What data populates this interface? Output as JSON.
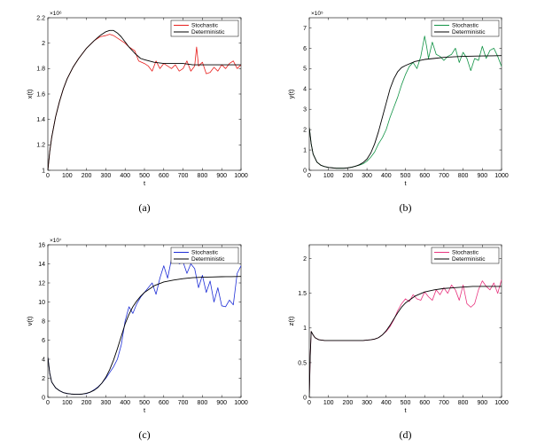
{
  "chart_data": [
    {
      "type": "line",
      "id": "a",
      "caption": "(a)",
      "xlabel": "t",
      "ylabel": "x(t)",
      "exponent_label": "×10⁶",
      "xlim": [
        0,
        1000
      ],
      "ylim": [
        1.0,
        2.2
      ],
      "xticks": [
        "0",
        "100",
        "200",
        "300",
        "400",
        "500",
        "600",
        "700",
        "800",
        "900",
        "1000"
      ],
      "yticks": [
        "1",
        "1.2",
        "1.4",
        "1.6",
        "1.8",
        "2",
        "2.2"
      ],
      "ytick_values": [
        1.0,
        1.2,
        1.4,
        1.6,
        1.8,
        2.0,
        2.2
      ],
      "legend": {
        "position": "top-right",
        "entries": [
          "Stochastic",
          "Deterministic"
        ]
      },
      "series": [
        {
          "name": "Stochastic",
          "color": "#e8201e",
          "x": [
            0,
            10,
            20,
            40,
            60,
            80,
            100,
            130,
            160,
            200,
            240,
            270,
            300,
            320,
            340,
            360,
            380,
            400,
            420,
            450,
            470,
            500,
            520,
            540,
            560,
            580,
            600,
            620,
            640,
            660,
            680,
            700,
            720,
            740,
            760,
            770,
            780,
            800,
            820,
            840,
            860,
            880,
            900,
            920,
            940,
            960,
            980,
            1000
          ],
          "y": [
            1.0,
            1.15,
            1.26,
            1.42,
            1.54,
            1.64,
            1.72,
            1.81,
            1.88,
            1.96,
            2.02,
            2.05,
            2.06,
            2.07,
            2.06,
            2.04,
            2.02,
            2.0,
            1.97,
            1.94,
            1.86,
            1.84,
            1.82,
            1.78,
            1.86,
            1.8,
            1.84,
            1.82,
            1.8,
            1.83,
            1.78,
            1.8,
            1.86,
            1.78,
            1.82,
            1.97,
            1.82,
            1.85,
            1.76,
            1.77,
            1.81,
            1.78,
            1.83,
            1.8,
            1.84,
            1.86,
            1.8,
            1.83
          ]
        },
        {
          "name": "Deterministic",
          "color": "#000000",
          "x": [
            0,
            10,
            20,
            40,
            60,
            80,
            100,
            130,
            160,
            200,
            240,
            270,
            300,
            320,
            340,
            360,
            380,
            400,
            420,
            450,
            480,
            500,
            550,
            600,
            650,
            700,
            750,
            800,
            850,
            900,
            950,
            1000
          ],
          "y": [
            1.0,
            1.15,
            1.26,
            1.42,
            1.54,
            1.64,
            1.72,
            1.81,
            1.88,
            1.96,
            2.02,
            2.06,
            2.09,
            2.1,
            2.1,
            2.08,
            2.05,
            2.01,
            1.97,
            1.92,
            1.88,
            1.87,
            1.85,
            1.84,
            1.84,
            1.84,
            1.83,
            1.83,
            1.83,
            1.83,
            1.83,
            1.83
          ]
        }
      ]
    },
    {
      "type": "line",
      "id": "b",
      "caption": "(b)",
      "xlabel": "t",
      "ylabel": "y(t)",
      "exponent_label": "×10⁵",
      "xlim": [
        0,
        1000
      ],
      "ylim": [
        0,
        7.5
      ],
      "xticks": [
        "0",
        "100",
        "200",
        "300",
        "400",
        "500",
        "600",
        "700",
        "800",
        "900",
        "1000"
      ],
      "yticks": [
        "0",
        "1",
        "2",
        "3",
        "4",
        "5",
        "6",
        "7"
      ],
      "ytick_values": [
        0,
        1,
        2,
        3,
        4,
        5,
        6,
        7
      ],
      "legend": {
        "position": "top-right",
        "entries": [
          "Stochastic",
          "Deterministic"
        ]
      },
      "series": [
        {
          "name": "Stochastic",
          "color": "#119345",
          "x": [
            0,
            10,
            20,
            40,
            60,
            80,
            100,
            120,
            140,
            160,
            180,
            200,
            220,
            240,
            260,
            280,
            300,
            320,
            340,
            360,
            380,
            400,
            420,
            440,
            460,
            480,
            500,
            520,
            540,
            560,
            580,
            600,
            610,
            620,
            640,
            660,
            680,
            700,
            720,
            740,
            760,
            780,
            800,
            820,
            840,
            860,
            880,
            900,
            920,
            940,
            960,
            980,
            1000
          ],
          "y": [
            2.1,
            1.3,
            0.8,
            0.4,
            0.25,
            0.18,
            0.14,
            0.12,
            0.1,
            0.1,
            0.1,
            0.12,
            0.15,
            0.2,
            0.25,
            0.32,
            0.45,
            0.65,
            0.9,
            1.3,
            1.6,
            2.0,
            2.6,
            3.1,
            3.6,
            4.2,
            4.7,
            5.1,
            5.3,
            5.0,
            5.6,
            6.6,
            6.1,
            5.5,
            6.3,
            5.7,
            5.6,
            5.4,
            5.6,
            5.7,
            6.0,
            5.3,
            5.8,
            5.5,
            4.9,
            5.5,
            5.4,
            6.1,
            5.5,
            5.9,
            6.0,
            5.6,
            5.1
          ]
        },
        {
          "name": "Deterministic",
          "color": "#000000",
          "x": [
            0,
            10,
            20,
            40,
            60,
            80,
            100,
            120,
            140,
            160,
            180,
            200,
            220,
            240,
            260,
            280,
            300,
            320,
            340,
            360,
            380,
            400,
            420,
            440,
            460,
            480,
            500,
            550,
            600,
            650,
            700,
            750,
            800,
            850,
            900,
            950,
            1000
          ],
          "y": [
            2.1,
            1.3,
            0.8,
            0.4,
            0.25,
            0.18,
            0.14,
            0.12,
            0.1,
            0.1,
            0.1,
            0.12,
            0.15,
            0.2,
            0.27,
            0.38,
            0.55,
            0.85,
            1.3,
            1.9,
            2.6,
            3.3,
            4.0,
            4.5,
            4.85,
            5.05,
            5.15,
            5.35,
            5.45,
            5.5,
            5.55,
            5.58,
            5.6,
            5.61,
            5.62,
            5.63,
            5.64
          ]
        }
      ]
    },
    {
      "type": "line",
      "id": "c",
      "caption": "(c)",
      "xlabel": "t",
      "ylabel": "v(t)",
      "exponent_label": "×10⁷",
      "xlim": [
        0,
        1000
      ],
      "ylim": [
        0,
        16
      ],
      "xticks": [
        "0",
        "100",
        "200",
        "300",
        "400",
        "500",
        "600",
        "700",
        "800",
        "900",
        "1000"
      ],
      "yticks": [
        "0",
        "2",
        "4",
        "6",
        "8",
        "10",
        "12",
        "14",
        "16"
      ],
      "ytick_values": [
        0,
        2,
        4,
        6,
        8,
        10,
        12,
        14,
        16
      ],
      "legend": {
        "position": "top-right",
        "entries": [
          "Stochastic",
          "Deterministic"
        ]
      },
      "series": [
        {
          "name": "Stochastic",
          "color": "#1f2fd6",
          "x": [
            0,
            10,
            20,
            40,
            60,
            80,
            100,
            120,
            140,
            160,
            180,
            200,
            220,
            240,
            260,
            280,
            300,
            320,
            340,
            360,
            380,
            400,
            420,
            440,
            460,
            480,
            500,
            520,
            540,
            560,
            580,
            600,
            620,
            640,
            660,
            680,
            700,
            720,
            740,
            760,
            780,
            800,
            820,
            840,
            860,
            880,
            900,
            920,
            940,
            960,
            980,
            1000
          ],
          "y": [
            4.2,
            2.5,
            1.6,
            1.0,
            0.7,
            0.5,
            0.4,
            0.35,
            0.32,
            0.32,
            0.35,
            0.4,
            0.55,
            0.8,
            1.1,
            1.5,
            2.0,
            2.6,
            3.2,
            4.0,
            5.5,
            8.0,
            9.5,
            8.8,
            9.8,
            10.5,
            11.0,
            11.5,
            12.0,
            10.8,
            12.5,
            13.8,
            12.5,
            14.5,
            15.4,
            14.0,
            14.2,
            13.0,
            14.0,
            13.5,
            11.5,
            12.8,
            11.0,
            12.2,
            10.0,
            11.5,
            9.6,
            9.5,
            10.2,
            9.7,
            13.0,
            13.8
          ]
        },
        {
          "name": "Deterministic",
          "color": "#000000",
          "x": [
            0,
            10,
            20,
            40,
            60,
            80,
            100,
            120,
            140,
            160,
            180,
            200,
            220,
            240,
            260,
            280,
            300,
            320,
            340,
            360,
            380,
            400,
            420,
            440,
            460,
            480,
            500,
            550,
            600,
            650,
            700,
            750,
            800,
            850,
            900,
            950,
            1000
          ],
          "y": [
            4.2,
            2.5,
            1.6,
            1.0,
            0.7,
            0.5,
            0.4,
            0.35,
            0.32,
            0.32,
            0.35,
            0.42,
            0.55,
            0.75,
            1.05,
            1.5,
            2.1,
            2.9,
            3.9,
            5.1,
            6.4,
            7.7,
            8.7,
            9.5,
            10.1,
            10.6,
            11.0,
            11.7,
            12.1,
            12.3,
            12.45,
            12.55,
            12.6,
            12.62,
            12.65,
            12.66,
            12.68
          ]
        }
      ]
    },
    {
      "type": "line",
      "id": "d",
      "caption": "(d)",
      "xlabel": "t",
      "ylabel": "z(t)",
      "exponent_label": "",
      "xlim": [
        0,
        1000
      ],
      "ylim": [
        0,
        2.2
      ],
      "xticks": [
        "0",
        "100",
        "200",
        "300",
        "400",
        "500",
        "600",
        "700",
        "800",
        "900",
        "1000"
      ],
      "yticks": [
        "0",
        "0.5",
        "1",
        "1.5",
        "2"
      ],
      "ytick_values": [
        0,
        0.5,
        1.0,
        1.5,
        2.0
      ],
      "legend": {
        "position": "top-right",
        "entries": [
          "Stochastic",
          "Deterministic"
        ]
      },
      "series": [
        {
          "name": "Stochastic",
          "color": "#e8347e",
          "x": [
            0,
            5,
            10,
            20,
            30,
            50,
            80,
            120,
            160,
            200,
            240,
            280,
            320,
            340,
            360,
            380,
            400,
            420,
            440,
            460,
            480,
            500,
            520,
            540,
            560,
            580,
            600,
            620,
            640,
            660,
            680,
            700,
            720,
            740,
            760,
            780,
            800,
            820,
            840,
            860,
            880,
            900,
            920,
            940,
            960,
            980,
            1000
          ],
          "y": [
            0.0,
            0.6,
            0.95,
            0.9,
            0.86,
            0.83,
            0.82,
            0.82,
            0.82,
            0.82,
            0.82,
            0.82,
            0.83,
            0.84,
            0.86,
            0.9,
            0.95,
            1.02,
            1.12,
            1.25,
            1.35,
            1.42,
            1.38,
            1.48,
            1.42,
            1.4,
            1.52,
            1.45,
            1.4,
            1.55,
            1.48,
            1.58,
            1.5,
            1.62,
            1.55,
            1.4,
            1.62,
            1.35,
            1.3,
            1.35,
            1.55,
            1.68,
            1.6,
            1.55,
            1.65,
            1.5,
            1.7
          ]
        },
        {
          "name": "Deterministic",
          "color": "#000000",
          "x": [
            0,
            5,
            10,
            20,
            30,
            50,
            80,
            120,
            160,
            200,
            240,
            280,
            320,
            340,
            360,
            380,
            400,
            420,
            440,
            460,
            480,
            500,
            550,
            600,
            650,
            700,
            750,
            800,
            850,
            900,
            950,
            1000
          ],
          "y": [
            0.0,
            0.6,
            0.95,
            0.9,
            0.86,
            0.83,
            0.82,
            0.82,
            0.82,
            0.82,
            0.82,
            0.82,
            0.83,
            0.84,
            0.86,
            0.9,
            0.96,
            1.04,
            1.13,
            1.22,
            1.3,
            1.36,
            1.46,
            1.52,
            1.55,
            1.57,
            1.58,
            1.59,
            1.6,
            1.6,
            1.6,
            1.6
          ]
        }
      ]
    }
  ]
}
